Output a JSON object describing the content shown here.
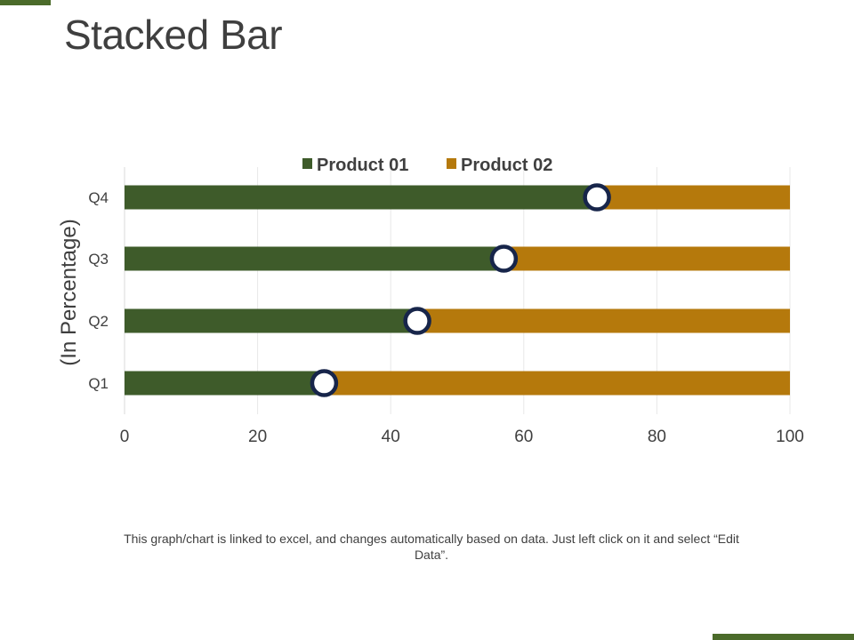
{
  "title": "Stacked Bar",
  "footer_note": "This graph/chart is linked to excel, and changes automatically based on data. Just left click on it and select “Edit Data”.",
  "colors": {
    "accent": "#4b6b2a",
    "product01": "#3e5b2a",
    "product02": "#b5790c",
    "marker_outline": "#17254a",
    "marker_fill": "#ffffff",
    "text": "#3f3f3f",
    "grid": "#e8e8e8"
  },
  "chart_data": {
    "type": "bar",
    "orientation": "horizontal",
    "stacked": true,
    "categories": [
      "Q1",
      "Q2",
      "Q3",
      "Q4"
    ],
    "series": [
      {
        "name": "Product 01",
        "values": [
          30,
          44,
          57,
          71
        ]
      },
      {
        "name": "Product 02",
        "values": [
          70,
          56,
          43,
          29
        ]
      }
    ],
    "markers": "circle at the end of Product 01 segment",
    "xticks": [
      "0",
      "20",
      "40",
      "60",
      "80",
      "100"
    ],
    "xlim": [
      0,
      100
    ],
    "ylabel": "(In Percentage)",
    "legend": "top-center",
    "grid": true
  }
}
